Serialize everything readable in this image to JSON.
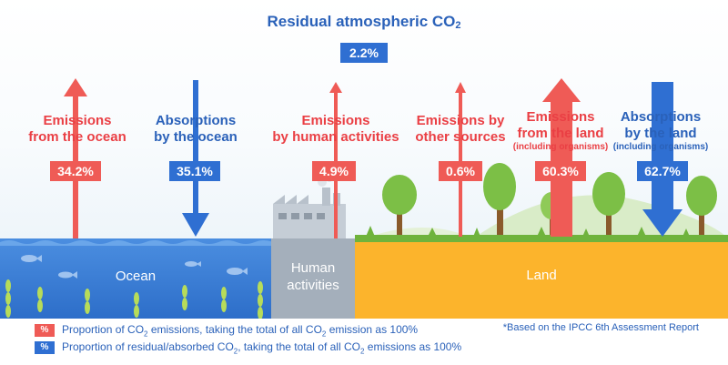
{
  "title": {
    "text": "Residual atmospheric CO",
    "sub": "2",
    "value": "2.2%"
  },
  "flows": [
    {
      "id": "emissions-ocean",
      "line1": "Emissions",
      "line2": "from the ocean",
      "value": "34.2%",
      "direction": "up",
      "color": "#ef5b56"
    },
    {
      "id": "absorptions-ocean",
      "line1": "Absorptions",
      "line2": "by the ocean",
      "value": "35.1%",
      "direction": "down",
      "color": "#2f6fd2"
    },
    {
      "id": "emissions-human",
      "line1": "Emissions",
      "line2": "by human activities",
      "value": "4.9%",
      "direction": "up",
      "color": "#ef5b56"
    },
    {
      "id": "emissions-other",
      "line1": "Emissions by",
      "line2": "other sources",
      "value": "0.6%",
      "direction": "up",
      "color": "#ef5b56"
    },
    {
      "id": "emissions-land",
      "line1": "Emissions",
      "line2": "from the land",
      "line3": "(including organisms)",
      "value": "60.3%",
      "direction": "up",
      "color": "#ef5b56"
    },
    {
      "id": "absorptions-land",
      "line1": "Absorptions",
      "line2": "by the land",
      "line3": "(including organisms)",
      "value": "62.7%",
      "direction": "down",
      "color": "#2f6fd2"
    }
  ],
  "areas": {
    "ocean": "Ocean",
    "human_line1": "Human",
    "human_line2": "activities",
    "land": "Land"
  },
  "legend": [
    {
      "symbol": "%",
      "color": "#ef5b56",
      "text_a": "Proportion of CO",
      "sub_a": "2",
      "text_b": " emissions, taking the total of all CO",
      "sub_b": "2",
      "text_c": " emission as 100%"
    },
    {
      "symbol": "%",
      "color": "#2f6fd2",
      "text_a": "Proportion of residual/absorbed CO",
      "sub_a": "2",
      "text_b": ", taking the total of all CO",
      "sub_b": "2",
      "text_c": " emissions  as 100%"
    }
  ],
  "note": "*Based on the IPCC 6th Assessment Report",
  "colors": {
    "emission": "#ef5b56",
    "absorption": "#2f6fd2",
    "ocean": "#2d6ec9",
    "human": "#a4afbb",
    "land": "#fcb42c",
    "grass": "#6fb33c"
  }
}
